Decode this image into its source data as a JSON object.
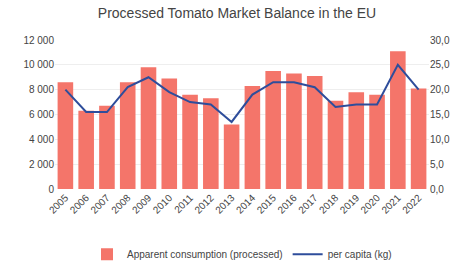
{
  "chart_data": {
    "type": "bar",
    "title": "Processed Tomato Market Balance in the EU",
    "categories": [
      "2005",
      "2006",
      "2007",
      "2008",
      "2009",
      "2010",
      "2011",
      "2012",
      "2013",
      "2014",
      "2015",
      "2016",
      "2017",
      "2018",
      "2019",
      "2020",
      "2021",
      "2022"
    ],
    "series": [
      {
        "name": "Apparent consumption (processed)",
        "type": "bar",
        "color": "#F4756A",
        "values": [
          8600,
          6300,
          6700,
          8600,
          9800,
          8900,
          7600,
          7300,
          5200,
          8300,
          9500,
          9300,
          9100,
          7100,
          7800,
          7600,
          11100,
          8100
        ]
      },
      {
        "name": "per capita (kg)",
        "type": "line",
        "color": "#2E4D9B",
        "axis": "y2",
        "values": [
          20.0,
          15.5,
          15.5,
          20.5,
          22.5,
          19.5,
          17.5,
          17.0,
          13.5,
          19.0,
          21.5,
          21.5,
          20.5,
          16.5,
          17.0,
          17.0,
          25.0,
          20.0
        ]
      }
    ],
    "ylim": [
      0,
      12000
    ],
    "yticks": [
      0,
      {
        "value": 2000,
        "label": "2 000"
      },
      {
        "value": 4000,
        "label": "4 000"
      },
      {
        "value": 6000,
        "label": "6 000"
      },
      {
        "value": 8000,
        "label": "8 000"
      },
      {
        "value": 10000,
        "label": "10 000"
      },
      {
        "value": 12000,
        "label": "12 000"
      }
    ],
    "y2lim": [
      0,
      30.0
    ],
    "y2ticks": [
      {
        "value": 0.0,
        "label": "0,0"
      },
      {
        "value": 5.0,
        "label": "5,0"
      },
      {
        "value": 10.0,
        "label": "10,0"
      },
      {
        "value": 15.0,
        "label": "15,0"
      },
      {
        "value": 20.0,
        "label": "20,0"
      },
      {
        "value": 25.0,
        "label": "25,0"
      },
      {
        "value": 30.0,
        "label": "30,0"
      }
    ],
    "grid": true,
    "legend": "bottom"
  }
}
